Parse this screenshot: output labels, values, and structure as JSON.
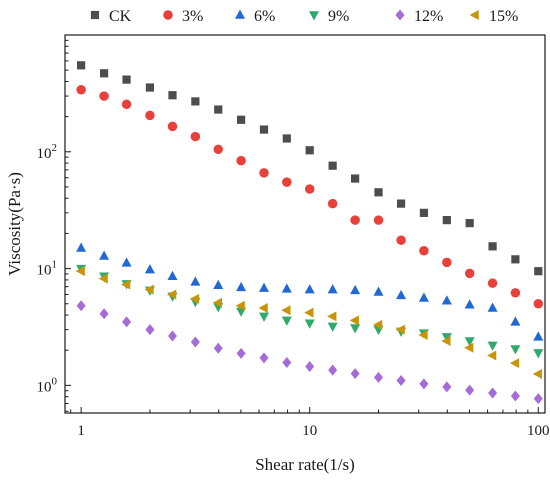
{
  "chart_data": {
    "type": "scatter",
    "title": "",
    "xlabel": "Shear rate(1/s)",
    "ylabel": "Viscosity(Pa·s)",
    "xscale": "log",
    "yscale": "log",
    "xlim": [
      0.85,
      107
    ],
    "ylim": [
      0.58,
      1000
    ],
    "grid": false,
    "legend_position": "top",
    "x_ticks": [
      {
        "value": 1,
        "label": "1"
      },
      {
        "value": 10,
        "label": "10"
      },
      {
        "value": 100,
        "label": "100"
      }
    ],
    "y_ticks": [
      {
        "value": 1,
        "base": "10",
        "exp": "0"
      },
      {
        "value": 10,
        "base": "10",
        "exp": "1"
      },
      {
        "value": 100,
        "base": "10",
        "exp": "2"
      }
    ],
    "x": [
      1,
      1.26,
      1.58,
      2,
      2.51,
      3.16,
      3.98,
      5.01,
      6.31,
      7.94,
      10,
      12.6,
      15.8,
      20,
      25.1,
      31.6,
      39.8,
      50.1,
      63.1,
      79.4,
      100
    ],
    "series": [
      {
        "name": "CK",
        "marker": "square",
        "color": "#4d4d4d",
        "values": [
          550,
          470,
          415,
          355,
          305,
          270,
          230,
          188,
          155,
          130,
          103,
          76,
          59,
          45,
          36,
          30,
          26,
          24.5,
          15.5,
          12,
          9.5
        ]
      },
      {
        "name": "3%",
        "marker": "circle",
        "color": "#e8413c",
        "values": [
          340,
          300,
          255,
          205,
          165,
          135,
          105,
          84,
          66,
          55,
          48,
          36,
          26,
          26,
          17.5,
          14.2,
          11.3,
          9.1,
          7.5,
          6.2,
          5.0
        ]
      },
      {
        "name": "6%",
        "marker": "triangle-up",
        "color": "#2168d4",
        "values": [
          15.0,
          12.8,
          11.2,
          9.8,
          8.6,
          7.7,
          7.2,
          6.9,
          6.8,
          6.7,
          6.6,
          6.6,
          6.5,
          6.3,
          5.9,
          5.6,
          5.3,
          4.9,
          4.6,
          3.5,
          2.6
        ]
      },
      {
        "name": "9%",
        "marker": "triangle-down",
        "color": "#2eaa6a",
        "values": [
          10.0,
          8.6,
          7.4,
          6.5,
          5.8,
          5.2,
          4.7,
          4.3,
          3.9,
          3.6,
          3.4,
          3.2,
          3.1,
          3.0,
          2.9,
          2.8,
          2.6,
          2.4,
          2.2,
          2.05,
          1.9
        ]
      },
      {
        "name": "12%",
        "marker": "diamond",
        "color": "#a56bd8",
        "values": [
          4.8,
          4.1,
          3.5,
          3.0,
          2.65,
          2.35,
          2.08,
          1.88,
          1.72,
          1.57,
          1.45,
          1.35,
          1.26,
          1.17,
          1.1,
          1.03,
          0.97,
          0.91,
          0.86,
          0.81,
          0.77
        ]
      },
      {
        "name": "15%",
        "marker": "triangle-left",
        "color": "#c8940a",
        "values": [
          9.5,
          8.2,
          7.3,
          6.6,
          6.0,
          5.5,
          5.1,
          4.8,
          4.6,
          4.4,
          4.2,
          3.9,
          3.6,
          3.3,
          3.0,
          2.7,
          2.4,
          2.1,
          1.8,
          1.55,
          1.25
        ]
      }
    ]
  }
}
